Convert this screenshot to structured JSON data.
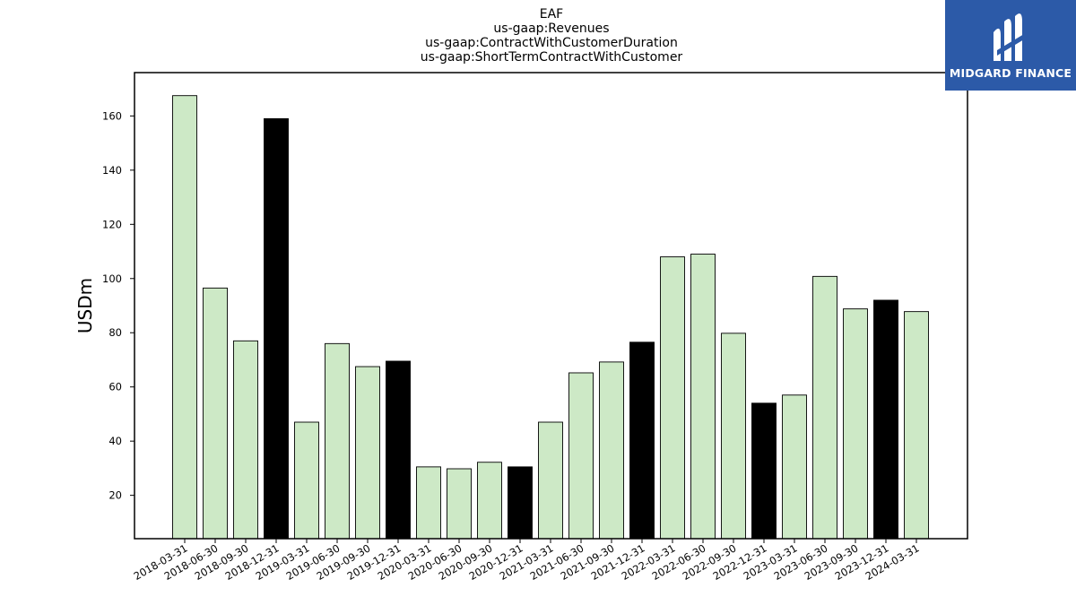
{
  "logo": {
    "text": "MIDGARD FINANCE",
    "background": "#2c5aa8"
  },
  "chart_data": {
    "type": "bar",
    "title": [
      "EAF",
      "us-gaap:Revenues",
      "us-gaap:ContractWithCustomerDuration",
      "us-gaap:ShortTermContractWithCustomer"
    ],
    "xlabel": "",
    "ylabel": "USDm",
    "ylim": [
      4,
      176
    ],
    "yticks": [
      20,
      40,
      60,
      80,
      100,
      120,
      140,
      160
    ],
    "grid": false,
    "categories": [
      "2018-03-31",
      "2018-06-30",
      "2018-09-30",
      "2018-12-31",
      "2019-03-31",
      "2019-06-30",
      "2019-09-30",
      "2019-12-31",
      "2020-03-31",
      "2020-06-30",
      "2020-09-30",
      "2020-12-31",
      "2021-03-31",
      "2021-06-30",
      "2021-09-30",
      "2021-12-31",
      "2022-03-31",
      "2022-06-30",
      "2022-09-30",
      "2022-12-31",
      "2023-03-31",
      "2023-06-30",
      "2023-09-30",
      "2023-12-31",
      "2024-03-31"
    ],
    "values": [
      167.5,
      96.5,
      77.0,
      159.0,
      47.0,
      76.0,
      67.5,
      69.5,
      30.5,
      29.8,
      32.2,
      30.5,
      47.0,
      65.2,
      69.2,
      76.5,
      108.0,
      109.0,
      79.8,
      54.0,
      57.0,
      100.8,
      88.8,
      92.0,
      87.8
    ],
    "colors": {
      "quarter": "#cde9c6",
      "year_end": "#000000",
      "edge": "#000000"
    }
  }
}
